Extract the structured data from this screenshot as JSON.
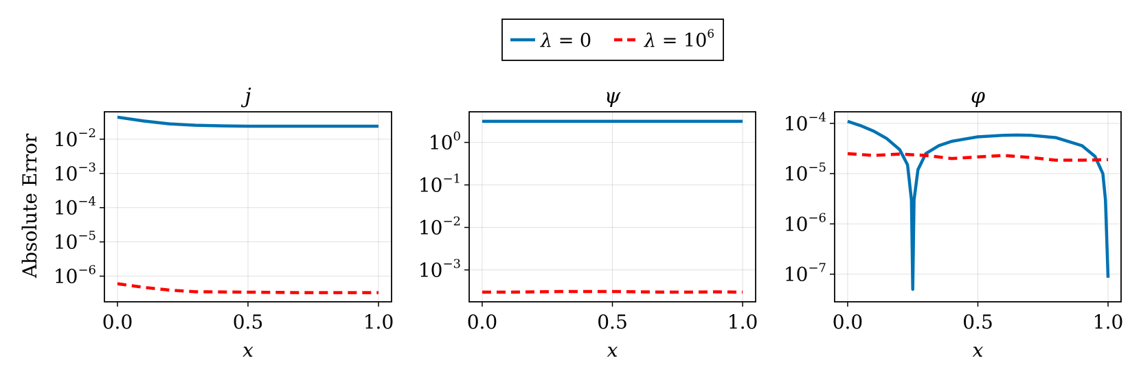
{
  "legend": {
    "entries": [
      {
        "label_symbol": "λ",
        "label_rest": " = 0",
        "color": "#0072b2",
        "dash": "solid"
      },
      {
        "label_symbol": "λ",
        "label_rest": " = 10",
        "label_sup": "6",
        "color": "#ff0000",
        "dash": "dashed"
      }
    ]
  },
  "y_shared_label": "Absolute Error",
  "chart_data": [
    {
      "type": "line",
      "title": "j",
      "xlabel": "x",
      "ylabel": "Absolute Error",
      "yscale": "log",
      "xlim": [
        -0.05,
        1.05
      ],
      "ylim_exp": [
        -6.75,
        -1.2
      ],
      "xticks": [
        0.0,
        0.5,
        1.0
      ],
      "xtick_labels": [
        "0.0",
        "0.5",
        "1.0"
      ],
      "yticks_exp": [
        -6,
        -5,
        -4,
        -3,
        -2
      ],
      "grid": true,
      "series": [
        {
          "name": "λ = 0",
          "color": "#0072b2",
          "dash": "solid",
          "x": [
            0.0,
            0.1,
            0.2,
            0.3,
            0.4,
            0.5,
            0.6,
            0.7,
            0.8,
            0.9,
            1.0
          ],
          "y": [
            0.044,
            0.034,
            0.028,
            0.0255,
            0.0245,
            0.024,
            0.024,
            0.024,
            0.024,
            0.024,
            0.024
          ]
        },
        {
          "name": "λ = 10^6",
          "color": "#ff0000",
          "dash": "dashed",
          "x": [
            0.0,
            0.1,
            0.2,
            0.3,
            0.4,
            0.5,
            0.6,
            0.7,
            0.8,
            0.9,
            1.0
          ],
          "y": [
            6e-07,
            4.7e-07,
            3.9e-07,
            3.5e-07,
            3.45e-07,
            3.4e-07,
            3.35e-07,
            3.3e-07,
            3.3e-07,
            3.3e-07,
            3.3e-07
          ]
        }
      ]
    },
    {
      "type": "line",
      "title": "ψ",
      "xlabel": "x",
      "ylabel": "",
      "yscale": "log",
      "xlim": [
        -0.05,
        1.05
      ],
      "ylim_exp": [
        -3.75,
        0.72
      ],
      "xticks": [
        0.0,
        0.5,
        1.0
      ],
      "xtick_labels": [
        "0.0",
        "0.5",
        "1.0"
      ],
      "yticks_exp": [
        -3,
        -2,
        -1,
        0
      ],
      "grid": true,
      "series": [
        {
          "name": "λ = 0",
          "color": "#0072b2",
          "dash": "solid",
          "x": [
            0.0,
            0.5,
            1.0
          ],
          "y": [
            3.14,
            3.14,
            3.14
          ]
        },
        {
          "name": "λ = 10^6",
          "color": "#ff0000",
          "dash": "dashed",
          "x": [
            0.0,
            0.1,
            0.2,
            0.3,
            0.4,
            0.5,
            0.6,
            0.7,
            0.8,
            0.9,
            1.0
          ],
          "y": [
            0.0003,
            0.0003,
            0.000305,
            0.00031,
            0.00031,
            0.00031,
            0.000305,
            0.0003,
            0.0003,
            0.000305,
            0.0003
          ]
        }
      ]
    },
    {
      "type": "line",
      "title": "φ",
      "xlabel": "x",
      "ylabel": "",
      "yscale": "log",
      "xlim": [
        -0.05,
        1.05
      ],
      "ylim_exp": [
        -7.55,
        -3.77
      ],
      "xticks": [
        0.0,
        0.5,
        1.0
      ],
      "xtick_labels": [
        "0.0",
        "0.5",
        "1.0"
      ],
      "yticks_exp": [
        -7,
        -6,
        -5,
        -4
      ],
      "grid": true,
      "series": [
        {
          "name": "λ = 0",
          "color": "#0072b2",
          "dash": "solid",
          "x": [
            0.0,
            0.05,
            0.1,
            0.15,
            0.2,
            0.23,
            0.245,
            0.25,
            0.255,
            0.27,
            0.3,
            0.35,
            0.4,
            0.5,
            0.6,
            0.65,
            0.7,
            0.8,
            0.9,
            0.95,
            0.98,
            0.99,
            1.0
          ],
          "y": [
            0.00011,
            9e-05,
            7e-05,
            5e-05,
            3e-05,
            1.5e-05,
            3e-06,
            5e-08,
            3e-06,
            1.2e-05,
            2.5e-05,
            3.6e-05,
            4.4e-05,
            5.4e-05,
            5.8e-05,
            5.85e-05,
            5.8e-05,
            5.2e-05,
            3.6e-05,
            2.2e-05,
            1e-05,
            3e-06,
            8.5e-08
          ]
        },
        {
          "name": "λ = 10^6",
          "color": "#ff0000",
          "dash": "dashed",
          "x": [
            0.0,
            0.1,
            0.2,
            0.3,
            0.4,
            0.5,
            0.6,
            0.7,
            0.8,
            0.9,
            1.0
          ],
          "y": [
            2.5e-05,
            2.3e-05,
            2.45e-05,
            2.3e-05,
            2e-05,
            2.15e-05,
            2.3e-05,
            2.1e-05,
            1.85e-05,
            1.85e-05,
            1.9e-05
          ]
        }
      ]
    }
  ]
}
